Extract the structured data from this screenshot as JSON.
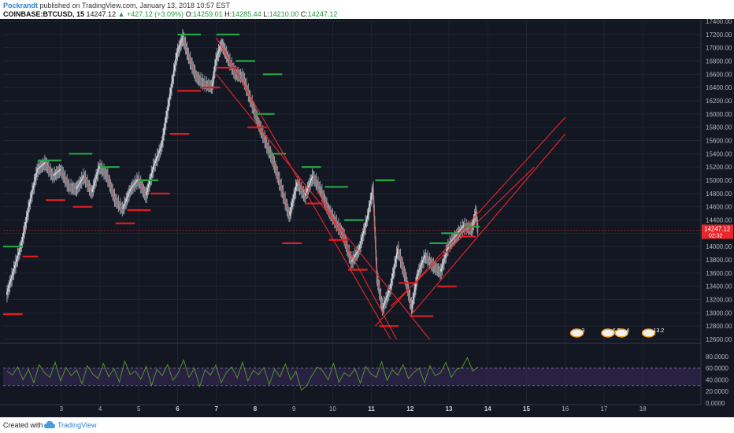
{
  "header": {
    "author": "Pockrandt",
    "published_text": "published on TradingView.com, January 13, 2018 10:57 EST",
    "symbol": "COINBASE:BTCUSD, 15",
    "last": "14247.12",
    "change": "▲ +427.12 (+3.09%)",
    "o_label": "O:",
    "o_value": "14259.01",
    "h_label": "H:",
    "h_value": "14285.44",
    "l_label": "L:",
    "l_value": "14210.00",
    "c_label": "C:",
    "c_value": "14247.12"
  },
  "footer": {
    "created_with": "Created with",
    "brand": "TradingView"
  },
  "colors": {
    "background": "#131722",
    "grid": "#1f2431",
    "text": "#b2b5be",
    "trendline": "#e8262b",
    "resistance": "#26a844",
    "support": "#e01e25",
    "rsi_line": "#5c9b2b",
    "rsi_band": "#3a2a5c",
    "price_tag": "#e8262b"
  },
  "chart_data": {
    "type": "line",
    "subtype": "candlestick price chart with trend channels and RSI sub-pane",
    "price_axis": {
      "ticks": [
        "17400.00",
        "17200.00",
        "17000.00",
        "16800.00",
        "16600.00",
        "16400.00",
        "16200.00",
        "16000.00",
        "15800.00",
        "15600.00",
        "15400.00",
        "15200.00",
        "15000.00",
        "14800.00",
        "14600.00",
        "14400.00",
        "14200.00",
        "14000.00",
        "13800.00",
        "13600.00",
        "13400.00",
        "13200.00",
        "13000.00",
        "12800.00",
        "12600.00"
      ],
      "range": [
        12600,
        17400
      ],
      "current_price": "14247.12",
      "countdown": "02:32"
    },
    "time_axis": {
      "ticks": [
        "3",
        "4",
        "5",
        "6",
        "7",
        "8",
        "9",
        "10",
        "11",
        "12",
        "13",
        "14",
        "15",
        "16",
        "17",
        "18"
      ],
      "bold_ticks": [
        "6",
        "7",
        "8",
        "11",
        "12",
        "13",
        "14",
        "15"
      ],
      "range": [
        1.5,
        19.5
      ]
    },
    "price_path": [
      [
        1.6,
        13250
      ],
      [
        1.8,
        13650
      ],
      [
        2.0,
        14050
      ],
      [
        2.2,
        14650
      ],
      [
        2.4,
        15150
      ],
      [
        2.6,
        15250
      ],
      [
        2.8,
        15050
      ],
      [
        3.0,
        15150
      ],
      [
        3.2,
        14900
      ],
      [
        3.4,
        14850
      ],
      [
        3.6,
        15050
      ],
      [
        3.8,
        14800
      ],
      [
        4.0,
        15200
      ],
      [
        4.2,
        15050
      ],
      [
        4.4,
        14700
      ],
      [
        4.6,
        14550
      ],
      [
        4.8,
        14850
      ],
      [
        5.0,
        15000
      ],
      [
        5.2,
        14750
      ],
      [
        5.4,
        15200
      ],
      [
        5.6,
        15500
      ],
      [
        5.8,
        16200
      ],
      [
        6.0,
        16900
      ],
      [
        6.15,
        17150
      ],
      [
        6.3,
        16850
      ],
      [
        6.5,
        16550
      ],
      [
        6.7,
        16450
      ],
      [
        6.9,
        16400
      ],
      [
        7.0,
        16800
      ],
      [
        7.15,
        17050
      ],
      [
        7.3,
        16850
      ],
      [
        7.5,
        16600
      ],
      [
        7.7,
        16550
      ],
      [
        7.9,
        16200
      ],
      [
        8.1,
        15850
      ],
      [
        8.3,
        15550
      ],
      [
        8.5,
        15250
      ],
      [
        8.7,
        14850
      ],
      [
        8.9,
        14450
      ],
      [
        9.1,
        14950
      ],
      [
        9.3,
        14750
      ],
      [
        9.5,
        15050
      ],
      [
        9.7,
        14850
      ],
      [
        9.9,
        14550
      ],
      [
        10.1,
        14350
      ],
      [
        10.3,
        14150
      ],
      [
        10.5,
        13750
      ],
      [
        10.7,
        13950
      ],
      [
        10.9,
        14400
      ],
      [
        11.05,
        14850
      ],
      [
        11.15,
        13550
      ],
      [
        11.3,
        13050
      ],
      [
        11.5,
        13350
      ],
      [
        11.7,
        13950
      ],
      [
        11.9,
        13500
      ],
      [
        12.05,
        13050
      ],
      [
        12.2,
        13550
      ],
      [
        12.4,
        13850
      ],
      [
        12.6,
        13700
      ],
      [
        12.8,
        13600
      ],
      [
        13.0,
        14000
      ],
      [
        13.2,
        14150
      ],
      [
        13.4,
        14300
      ],
      [
        13.6,
        14250
      ],
      [
        13.7,
        14500
      ],
      [
        13.75,
        14247
      ]
    ],
    "trendlines": [
      {
        "name": "channel-upper",
        "from": [
          7.0,
          17150
        ],
        "to": [
          11.5,
          12600
        ]
      },
      {
        "name": "channel-lower",
        "from": [
          7.0,
          16600
        ],
        "to": [
          12.5,
          12600
        ]
      },
      {
        "name": "channel-mid-1",
        "from": [
          9.6,
          14850
        ],
        "to": [
          11.65,
          12600
        ]
      },
      {
        "name": "rising-upper",
        "from": [
          11.1,
          12800
        ],
        "to": [
          16.0,
          15950
        ]
      },
      {
        "name": "rising-lower",
        "from": [
          12.0,
          12950
        ],
        "to": [
          16.0,
          15700
        ]
      },
      {
        "name": "rising-inner",
        "from": [
          11.5,
          13100
        ],
        "to": [
          15.2,
          15200
        ]
      }
    ],
    "resistance_levels": [
      {
        "x": [
          1.5,
          2.0
        ],
        "y": 14000
      },
      {
        "x": [
          2.4,
          3.0
        ],
        "y": 15300
      },
      {
        "x": [
          3.2,
          3.8
        ],
        "y": 15400
      },
      {
        "x": [
          4.0,
          4.5
        ],
        "y": 15200
      },
      {
        "x": [
          5.0,
          5.5
        ],
        "y": 15000
      },
      {
        "x": [
          6.0,
          6.6
        ],
        "y": 17200
      },
      {
        "x": [
          7.0,
          7.6
        ],
        "y": 17200
      },
      {
        "x": [
          7.5,
          8.0
        ],
        "y": 16800
      },
      {
        "x": [
          8.2,
          8.7
        ],
        "y": 16600
      },
      {
        "x": [
          8.0,
          8.5
        ],
        "y": 16000
      },
      {
        "x": [
          8.3,
          8.8
        ],
        "y": 15400
      },
      {
        "x": [
          9.2,
          9.7
        ],
        "y": 15200
      },
      {
        "x": [
          9.8,
          10.4
        ],
        "y": 14900
      },
      {
        "x": [
          11.1,
          11.6
        ],
        "y": 15000
      },
      {
        "x": [
          10.3,
          10.8
        ],
        "y": 14400
      },
      {
        "x": [
          12.5,
          13.0
        ],
        "y": 14050
      },
      {
        "x": [
          12.8,
          13.3
        ],
        "y": 14200
      },
      {
        "x": [
          13.4,
          13.8
        ],
        "y": 14300
      }
    ],
    "support_levels": [
      {
        "x": [
          1.5,
          2.0
        ],
        "y": 12980
      },
      {
        "x": [
          2.0,
          2.4
        ],
        "y": 13850
      },
      {
        "x": [
          2.6,
          3.1
        ],
        "y": 14700
      },
      {
        "x": [
          3.3,
          3.8
        ],
        "y": 14600
      },
      {
        "x": [
          4.4,
          4.9
        ],
        "y": 14350
      },
      {
        "x": [
          4.7,
          5.3
        ],
        "y": 14550
      },
      {
        "x": [
          5.3,
          5.8
        ],
        "y": 14800
      },
      {
        "x": [
          5.8,
          6.3
        ],
        "y": 15700
      },
      {
        "x": [
          6.0,
          6.6
        ],
        "y": 16350
      },
      {
        "x": [
          6.6,
          7.1
        ],
        "y": 16400
      },
      {
        "x": [
          7.0,
          7.6
        ],
        "y": 16700
      },
      {
        "x": [
          7.8,
          8.3
        ],
        "y": 15800
      },
      {
        "x": [
          8.7,
          9.2
        ],
        "y": 14050
      },
      {
        "x": [
          9.3,
          9.8
        ],
        "y": 14650
      },
      {
        "x": [
          9.9,
          10.4
        ],
        "y": 14100
      },
      {
        "x": [
          10.4,
          10.9
        ],
        "y": 13650
      },
      {
        "x": [
          11.2,
          11.7
        ],
        "y": 12800
      },
      {
        "x": [
          11.7,
          12.2
        ],
        "y": 13450
      },
      {
        "x": [
          12.0,
          12.6
        ],
        "y": 12950
      },
      {
        "x": [
          12.7,
          13.2
        ],
        "y": 13400
      },
      {
        "x": [
          13.3,
          13.7
        ],
        "y": 14150
      }
    ],
    "event_badges": [
      {
        "x": 16.3,
        "label": "3"
      },
      {
        "x": 17.1,
        "label": "6.5"
      },
      {
        "x": 17.45,
        "label": "4"
      },
      {
        "x": 18.15,
        "label": "13.2"
      }
    ],
    "rsi": {
      "ticks": [
        "80.0000",
        "60.0000",
        "40.0000",
        "20.0000",
        "0.0000"
      ],
      "range": [
        0,
        100
      ],
      "upper_band": 60,
      "lower_band": 30,
      "values": [
        55,
        48,
        62,
        40,
        58,
        35,
        66,
        52,
        44,
        70,
        38,
        61,
        47,
        57,
        33,
        64,
        50,
        42,
        68,
        45,
        59,
        36,
        72,
        49,
        55,
        41,
        63,
        30,
        58,
        47,
        66,
        39,
        52,
        74,
        44,
        60,
        28,
        57,
        48,
        65,
        35,
        53,
        62,
        43,
        70,
        38,
        56,
        49,
        61,
        32,
        58,
        45,
        67,
        40,
        54,
        22,
        30,
        48,
        62,
        55,
        40,
        68,
        36,
        52,
        46,
        59,
        34,
        63,
        50,
        44,
        71,
        39,
        57,
        48,
        66,
        42,
        53,
        60,
        35,
        64,
        47,
        52,
        70,
        44,
        58,
        61,
        78,
        55,
        62
      ]
    }
  }
}
